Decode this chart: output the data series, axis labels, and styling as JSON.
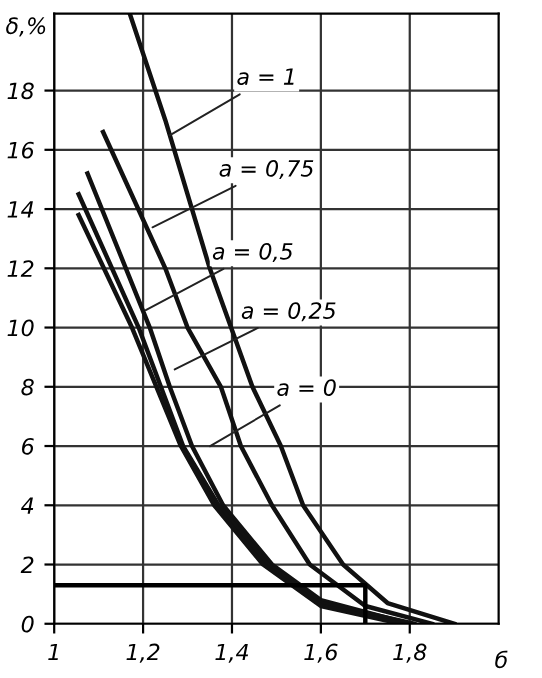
{
  "chart_data": {
    "type": "line",
    "ylabel": "δ,%",
    "xlabel": "б",
    "series": [
      {
        "color": "#111111",
        "x": [
          1.17,
          1.25,
          1.35,
          1.446,
          1.51,
          1.56,
          1.65,
          1.75,
          1.9
        ],
        "values": [
          20.6,
          17,
          12,
          8,
          6,
          4,
          2,
          0.7,
          0
        ]
      },
      {
        "color": "#111111",
        "x": [
          1.11,
          1.25,
          1.3,
          1.375,
          1.42,
          1.49,
          1.575,
          1.7,
          1.85
        ],
        "values": [
          16.6,
          12,
          10,
          8,
          6,
          4,
          2,
          0.6,
          0
        ]
      },
      {
        "color": "#111111",
        "x": [
          1.075,
          1.215,
          1.26,
          1.31,
          1.38,
          1.49,
          1.6,
          1.8
        ],
        "values": [
          15.2,
          10,
          8,
          6,
          4,
          2,
          0.8,
          0
        ]
      },
      {
        "color": "#111111",
        "x": [
          1.055,
          1.19,
          1.24,
          1.29,
          1.37,
          1.48,
          1.6,
          1.81
        ],
        "values": [
          14.5,
          10,
          8,
          6,
          4,
          2,
          0.7,
          0
        ]
      },
      {
        "color": "#111111",
        "x": [
          1.055,
          1.175,
          1.23,
          1.285,
          1.36,
          1.47,
          1.6,
          1.78
        ],
        "values": [
          13.8,
          10,
          8,
          6,
          4,
          2,
          0.6,
          0
        ]
      },
      {
        "color": "#000000",
        "x": [
          1.0,
          1.7,
          1.7
        ],
        "values": [
          1.3,
          1.3,
          0
        ]
      }
    ],
    "annotations": [
      {
        "text": "a = 1",
        "x": 1.25,
        "y": 16.4
      },
      {
        "text": "a = 0,75",
        "x": 1.21,
        "y": 13.3
      },
      {
        "text": "a = 0,5",
        "x": 1.195,
        "y": 10.5
      },
      {
        "text": "a = 0,25",
        "x": 1.26,
        "y": 8.5
      },
      {
        "text": "a = 0",
        "x": 1.34,
        "y": 5.9
      }
    ],
    "xlim": [
      1,
      2
    ],
    "ylim": [
      0,
      20.6
    ],
    "xticks": [
      {
        "value": 1,
        "label": "1"
      },
      {
        "value": 1.2,
        "label": "1,2"
      },
      {
        "value": 1.4,
        "label": "1,4"
      },
      {
        "value": 1.6,
        "label": "1,6"
      },
      {
        "value": 1.8,
        "label": "1,8"
      }
    ],
    "yticks": [
      0,
      2,
      4,
      6,
      8,
      10,
      12,
      14,
      16,
      18
    ],
    "grid": true,
    "marker": "none",
    "line_style": "solid",
    "legend": false
  }
}
